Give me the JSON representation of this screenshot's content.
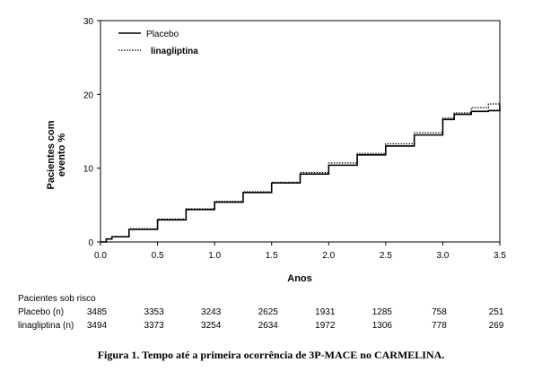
{
  "chart_data": {
    "type": "line",
    "title": "",
    "xlabel": "Anos",
    "ylabel": "Pacientes com\nevento %",
    "xlim": [
      0,
      3.5
    ],
    "ylim": [
      0,
      30
    ],
    "xticks": [
      0.0,
      0.5,
      1.0,
      1.5,
      2.0,
      2.5,
      3.0,
      3.5
    ],
    "xtick_labels": [
      "0.0",
      "0.5",
      "1.0",
      "1.5",
      "2.0",
      "2.5",
      "3.0",
      "3.5"
    ],
    "yticks": [
      0,
      10,
      20,
      30
    ],
    "ytick_labels": [
      "0",
      "10",
      "20",
      "30"
    ],
    "legend_position": "top-left",
    "grid": false,
    "series": [
      {
        "name": "Placebo",
        "style": "solid",
        "x": [
          0,
          0.05,
          0.1,
          0.25,
          0.5,
          0.75,
          1.0,
          1.25,
          1.5,
          1.75,
          2.0,
          2.25,
          2.5,
          2.75,
          3.0,
          3.1,
          3.25,
          3.4,
          3.5
        ],
        "y": [
          0,
          0.4,
          0.7,
          1.7,
          3.0,
          4.4,
          5.4,
          6.7,
          8.0,
          9.2,
          10.4,
          11.8,
          13.0,
          14.5,
          16.6,
          17.3,
          17.7,
          17.8,
          18.6
        ]
      },
      {
        "name": "linagliptina",
        "style": "dotted",
        "x": [
          0,
          0.05,
          0.1,
          0.25,
          0.5,
          0.75,
          1.0,
          1.25,
          1.5,
          1.75,
          2.0,
          2.25,
          2.5,
          2.75,
          3.0,
          3.1,
          3.25,
          3.4,
          3.5
        ],
        "y": [
          0,
          0.4,
          0.7,
          1.8,
          3.1,
          4.5,
          5.5,
          6.8,
          8.1,
          9.4,
          10.7,
          12.0,
          13.3,
          14.8,
          16.8,
          17.5,
          18.2,
          18.7,
          19.0
        ]
      }
    ]
  },
  "risk_table": {
    "title": "Pacientes sob risco",
    "rows": [
      {
        "label": "Placebo (n)",
        "values": [
          "3485",
          "3353",
          "3243",
          "2625",
          "1931",
          "1285",
          "758",
          "251"
        ]
      },
      {
        "label": "linagliptina (n)",
        "values": [
          "3494",
          "3373",
          "3254",
          "2634",
          "1972",
          "1306",
          "778",
          "269"
        ]
      }
    ]
  },
  "caption": "Figura 1. Tempo até a primeira ocorrência de 3P-MACE no CARMELINA."
}
